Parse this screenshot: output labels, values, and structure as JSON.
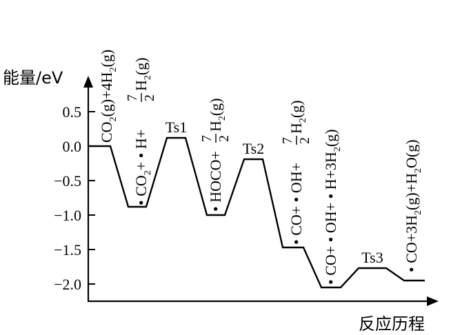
{
  "axis": {
    "y_label": "能量/eV",
    "x_label": "反应历程",
    "y_ticks": [
      "0.5",
      "0.0",
      "−0.5",
      "−1.0",
      "−1.5",
      "−2.0"
    ]
  },
  "levels": [
    {
      "energy": 0.0
    },
    {
      "energy": -0.88
    },
    {
      "energy": 0.12,
      "ts_label": "Ts1"
    },
    {
      "energy": -1.0
    },
    {
      "energy": -0.19,
      "ts_label": "Ts2"
    },
    {
      "energy": -1.47
    },
    {
      "energy": -2.05
    },
    {
      "energy": -1.77,
      "ts_label": "Ts3"
    },
    {
      "energy": -1.95
    }
  ],
  "species": {
    "s1": {
      "p1": "CO",
      "s1": "2",
      "p2": "(g)+4H",
      "s2": "2",
      "p3": "(g)"
    },
    "s2": {
      "p1": "• CO",
      "s1": "2",
      "p2": "+ • H+",
      "num": "7",
      "den": "2",
      "p3": "H",
      "s2": "2",
      "p4": "(g)"
    },
    "s3": {
      "p1": "• HOCO+",
      "num": "7",
      "den": "2",
      "p3": "H",
      "s2": "2",
      "p4": "(g)"
    },
    "s4": {
      "p1": "• CO+ • OH+",
      "num": "7",
      "den": "2",
      "p3": "H",
      "s2": "2",
      "p4": "(g)"
    },
    "s5": {
      "p1": "• CO+ • OH+ • H+3H",
      "s1": "2",
      "p2": "(g)"
    },
    "s6": {
      "p1": "• CO+3H",
      "s1": "2",
      "p2": "(g)+H",
      "s2": "2",
      "p3": "O(g)"
    }
  }
}
